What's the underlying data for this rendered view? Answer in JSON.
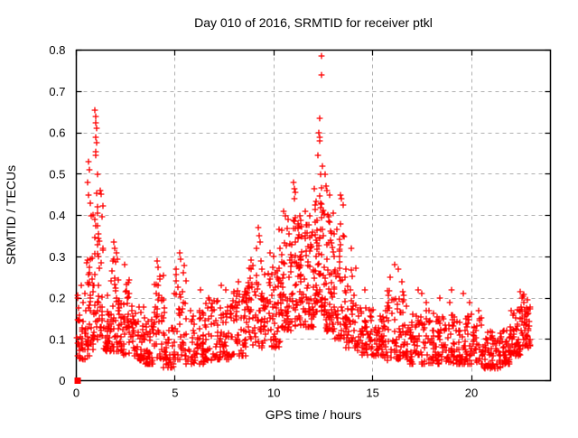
{
  "chart_data": {
    "type": "scatter",
    "title": "Day 010 of 2016, SRMTID for receiver ptkl",
    "xlabel": "GPS time / hours",
    "ylabel": "SRMTID / TECUs",
    "xlim": [
      0,
      24
    ],
    "ylim": [
      0,
      0.8
    ],
    "xticks": [
      {
        "v": 0,
        "label": "0"
      },
      {
        "v": 5,
        "label": "5"
      },
      {
        "v": 10,
        "label": "10"
      },
      {
        "v": 15,
        "label": "15"
      },
      {
        "v": 20,
        "label": "20"
      }
    ],
    "yticks": [
      {
        "v": 0.0,
        "label": "0"
      },
      {
        "v": 0.1,
        "label": "0.1"
      },
      {
        "v": 0.2,
        "label": "0.2"
      },
      {
        "v": 0.3,
        "label": "0.3"
      },
      {
        "v": 0.4,
        "label": "0.4"
      },
      {
        "v": 0.5,
        "label": "0.5"
      },
      {
        "v": 0.6,
        "label": "0.6"
      },
      {
        "v": 0.7,
        "label": "0.7"
      },
      {
        "v": 0.8,
        "label": "0.8"
      }
    ],
    "grid": true,
    "legend": "none",
    "marker": "plus",
    "colors": {
      "marker": "#ff0000",
      "grid": "#b0b0b0",
      "axis": "#000000",
      "background": "#ffffff"
    },
    "origin_marker": {
      "x": 0.07,
      "y": 0.0,
      "shape": "filled-square"
    },
    "high_points": [
      [
        0.55,
        0.48
      ],
      [
        0.6,
        0.53
      ],
      [
        0.62,
        0.45
      ],
      [
        0.65,
        0.51
      ],
      [
        0.7,
        0.43
      ],
      [
        0.75,
        0.4
      ],
      [
        0.95,
        0.655
      ],
      [
        0.98,
        0.64
      ],
      [
        1.0,
        0.625
      ],
      [
        1.02,
        0.61
      ],
      [
        0.97,
        0.59
      ],
      [
        1.04,
        0.575
      ],
      [
        0.96,
        0.555
      ],
      [
        1.0,
        0.545
      ],
      [
        1.07,
        0.5
      ],
      [
        1.35,
        0.32
      ],
      [
        1.9,
        0.335
      ],
      [
        1.95,
        0.32
      ],
      [
        2.05,
        0.31
      ],
      [
        2.45,
        0.28
      ],
      [
        4.1,
        0.29
      ],
      [
        4.15,
        0.275
      ],
      [
        5.25,
        0.31
      ],
      [
        5.3,
        0.295
      ],
      [
        6.3,
        0.22
      ],
      [
        7.35,
        0.23
      ],
      [
        7.55,
        0.22
      ],
      [
        8.2,
        0.24
      ],
      [
        9.2,
        0.37
      ],
      [
        9.25,
        0.35
      ],
      [
        9.3,
        0.335
      ],
      [
        9.1,
        0.32
      ],
      [
        9.8,
        0.31
      ],
      [
        10.0,
        0.3
      ],
      [
        10.5,
        0.41
      ],
      [
        10.6,
        0.4
      ],
      [
        10.7,
        0.39
      ],
      [
        11.0,
        0.48
      ],
      [
        11.05,
        0.465
      ],
      [
        11.1,
        0.455
      ],
      [
        11.05,
        0.44
      ],
      [
        11.6,
        0.41
      ],
      [
        11.8,
        0.4
      ],
      [
        12.42,
        0.785
      ],
      [
        12.42,
        0.74
      ],
      [
        12.3,
        0.635
      ],
      [
        12.28,
        0.6
      ],
      [
        12.33,
        0.59
      ],
      [
        12.3,
        0.58
      ],
      [
        12.25,
        0.545
      ],
      [
        12.45,
        0.52
      ],
      [
        12.38,
        0.5
      ],
      [
        12.6,
        0.5
      ],
      [
        12.65,
        0.47
      ],
      [
        12.7,
        0.46
      ],
      [
        12.8,
        0.45
      ],
      [
        13.35,
        0.45
      ],
      [
        13.42,
        0.44
      ],
      [
        13.5,
        0.425
      ],
      [
        13.9,
        0.32
      ],
      [
        14.6,
        0.22
      ],
      [
        15.9,
        0.25
      ],
      [
        16.1,
        0.28
      ],
      [
        16.3,
        0.27
      ],
      [
        16.5,
        0.24
      ],
      [
        17.3,
        0.22
      ],
      [
        17.5,
        0.21
      ],
      [
        17.7,
        0.19
      ],
      [
        18.4,
        0.2
      ],
      [
        19.0,
        0.22
      ],
      [
        18.9,
        0.19
      ],
      [
        19.6,
        0.21
      ],
      [
        19.9,
        0.19
      ],
      [
        20.35,
        0.17
      ],
      [
        22.45,
        0.215
      ],
      [
        22.6,
        0.205
      ]
    ],
    "density_segments_format": [
      "x_start",
      "x_end",
      "y_low",
      "y_high",
      "n_points"
    ],
    "density_segments": [
      [
        0.05,
        0.45,
        0.05,
        0.24,
        42
      ],
      [
        0.45,
        0.85,
        0.06,
        0.3,
        36
      ],
      [
        0.85,
        1.35,
        0.1,
        0.46,
        60
      ],
      [
        1.35,
        1.75,
        0.07,
        0.22,
        36
      ],
      [
        1.75,
        2.25,
        0.07,
        0.3,
        46
      ],
      [
        2.25,
        2.75,
        0.06,
        0.25,
        46
      ],
      [
        2.75,
        3.45,
        0.05,
        0.18,
        56
      ],
      [
        3.45,
        3.95,
        0.04,
        0.15,
        40
      ],
      [
        3.95,
        4.45,
        0.05,
        0.26,
        40
      ],
      [
        4.45,
        4.95,
        0.03,
        0.13,
        36
      ],
      [
        4.95,
        5.55,
        0.05,
        0.28,
        46
      ],
      [
        5.55,
        6.55,
        0.04,
        0.17,
        70
      ],
      [
        6.55,
        7.85,
        0.05,
        0.2,
        90
      ],
      [
        7.85,
        8.65,
        0.06,
        0.22,
        62
      ],
      [
        8.65,
        9.55,
        0.08,
        0.3,
        70
      ],
      [
        9.55,
        10.25,
        0.08,
        0.28,
        56
      ],
      [
        10.25,
        10.95,
        0.12,
        0.37,
        66
      ],
      [
        10.95,
        11.35,
        0.13,
        0.4,
        50
      ],
      [
        11.35,
        12.0,
        0.13,
        0.38,
        66
      ],
      [
        12.0,
        12.55,
        0.16,
        0.47,
        70
      ],
      [
        12.55,
        13.05,
        0.12,
        0.42,
        60
      ],
      [
        13.05,
        13.65,
        0.1,
        0.38,
        56
      ],
      [
        13.65,
        14.25,
        0.08,
        0.28,
        50
      ],
      [
        14.25,
        15.05,
        0.06,
        0.18,
        56
      ],
      [
        15.05,
        15.65,
        0.06,
        0.16,
        46
      ],
      [
        15.65,
        16.85,
        0.05,
        0.22,
        86
      ],
      [
        16.85,
        18.05,
        0.04,
        0.17,
        86
      ],
      [
        18.05,
        19.25,
        0.04,
        0.16,
        86
      ],
      [
        19.25,
        20.55,
        0.04,
        0.16,
        90
      ],
      [
        20.55,
        21.45,
        0.03,
        0.12,
        60
      ],
      [
        21.45,
        22.05,
        0.04,
        0.13,
        56
      ],
      [
        22.05,
        22.55,
        0.06,
        0.18,
        56
      ],
      [
        22.55,
        22.95,
        0.08,
        0.21,
        46
      ]
    ],
    "seed": 20160110
  }
}
